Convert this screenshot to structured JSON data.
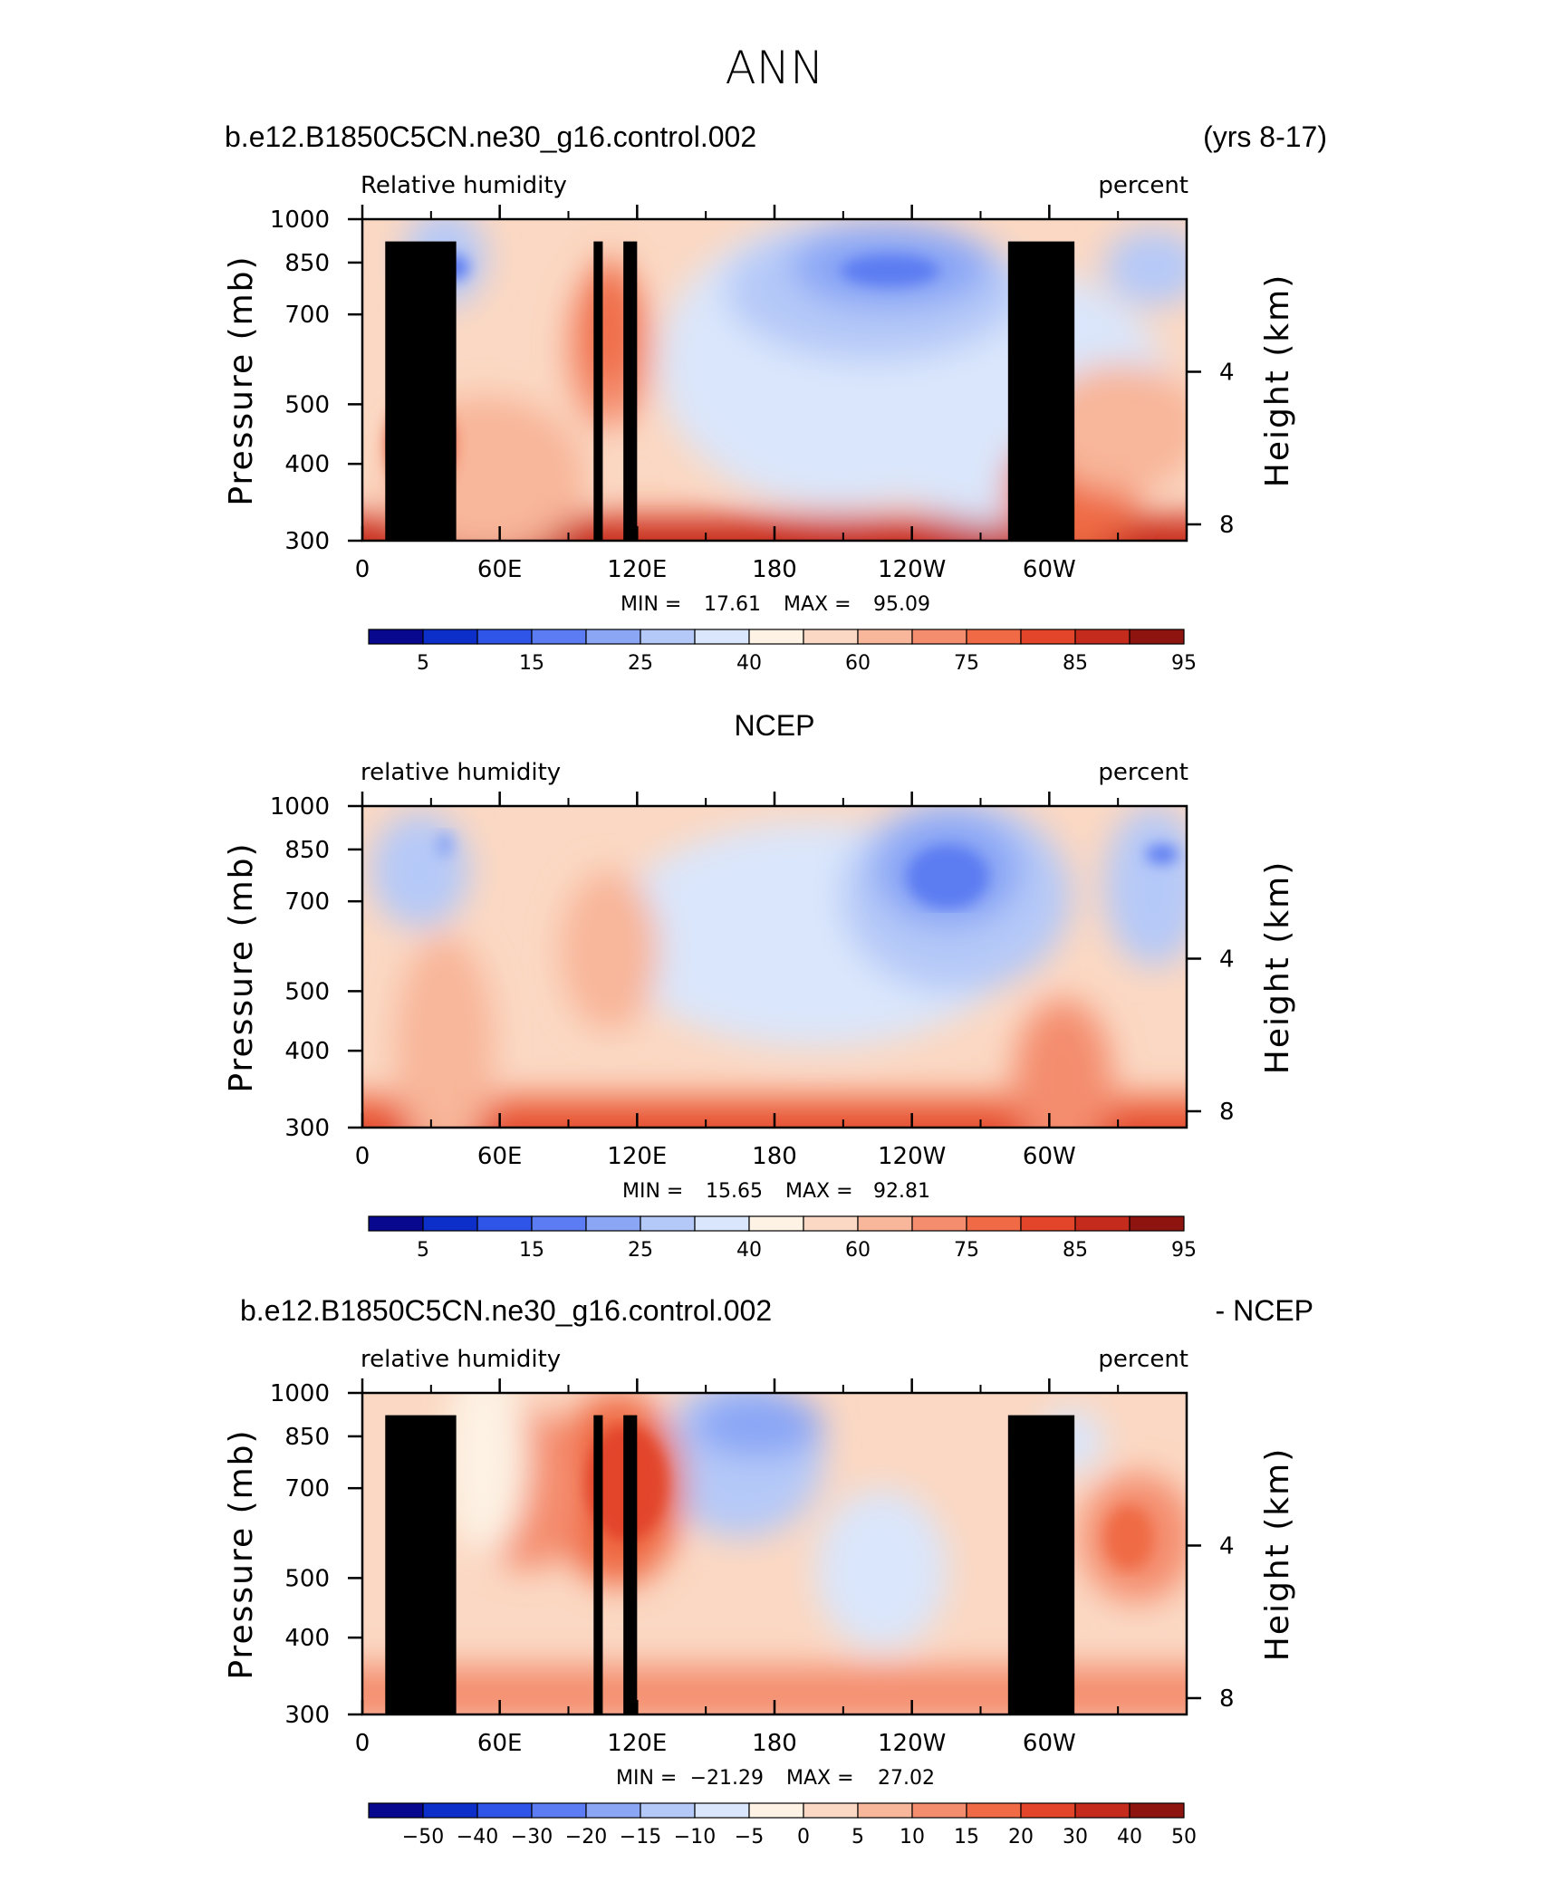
{
  "page": {
    "title": "ANN"
  },
  "palette": {
    "full": [
      "#08088f",
      "#0d2fc9",
      "#2f54e8",
      "#5b7cf2",
      "#8aa6f5",
      "#b5c9f8",
      "#dae6fb",
      "#fdf2e4",
      "#fbd8c3",
      "#f8b69a",
      "#f48d6e",
      "#ef6a45",
      "#e2452a",
      "#c52b1c",
      "#8e1410"
    ],
    "diff": [
      "#08088f",
      "#0d2fc9",
      "#2f54e8",
      "#5b7cf2",
      "#8aa6f5",
      "#b5c9f8",
      "#dae6fb",
      "#fdf2e4",
      "#fbd8c3",
      "#f8b69a",
      "#f48d6e",
      "#ef6a45",
      "#e2452a",
      "#c52b1c",
      "#8e1410"
    ]
  },
  "chart_data": [
    {
      "type": "heatmap",
      "header_left": "b.e12.B1850C5CN.ne30_g16.control.002",
      "header_right": "(yrs 8-17)",
      "variable_label": "Relative humidity",
      "units_label": "percent",
      "ylabel_left": "Pressure (mb)",
      "ylabel_right": "Height (km)",
      "x_ticks": [
        "0",
        "60E",
        "120E",
        "180",
        "120W",
        "60W"
      ],
      "y_ticks_left": [
        "300",
        "400",
        "500",
        "700",
        "850",
        "1000"
      ],
      "y_ticks_right": [
        "8",
        "4"
      ],
      "stats": {
        "min_label": "MIN =",
        "min": "17.61",
        "max_label": "MAX =",
        "max": "95.09"
      },
      "colorbar_labels": [
        "5",
        "15",
        "25",
        "40",
        "60",
        "75",
        "85",
        "95"
      ],
      "colorbar_scale": "full",
      "field": "model"
    },
    {
      "type": "heatmap",
      "header_center": "NCEP",
      "variable_label": "relative humidity",
      "units_label": "percent",
      "ylabel_left": "Pressure (mb)",
      "ylabel_right": "Height (km)",
      "x_ticks": [
        "0",
        "60E",
        "120E",
        "180",
        "120W",
        "60W"
      ],
      "y_ticks_left": [
        "300",
        "400",
        "500",
        "700",
        "850",
        "1000"
      ],
      "y_ticks_right": [
        "8",
        "4"
      ],
      "stats": {
        "min_label": "MIN =",
        "min": "15.65",
        "max_label": "MAX =",
        "max": "92.81"
      },
      "colorbar_labels": [
        "5",
        "15",
        "25",
        "40",
        "60",
        "75",
        "85",
        "95"
      ],
      "colorbar_scale": "full",
      "field": "obs"
    },
    {
      "type": "heatmap",
      "header_left": "b.e12.B1850C5CN.ne30_g16.control.002",
      "header_right": "- NCEP",
      "variable_label": "relative humidity",
      "units_label": "percent",
      "ylabel_left": "Pressure (mb)",
      "ylabel_right": "Height (km)",
      "x_ticks": [
        "0",
        "60E",
        "120E",
        "180",
        "120W",
        "60W"
      ],
      "y_ticks_left": [
        "300",
        "400",
        "500",
        "700",
        "850",
        "1000"
      ],
      "y_ticks_right": [
        "8",
        "4"
      ],
      "stats": {
        "min_label": "MIN =",
        "min": "−21.29",
        "max_label": "MAX =",
        "max": "27.02"
      },
      "colorbar_labels": [
        "−50",
        "−40",
        "−30",
        "−20",
        "−15",
        "−10",
        "−5",
        "0",
        "5",
        "10",
        "15",
        "20",
        "30",
        "40",
        "50"
      ],
      "colorbar_scale": "diff",
      "field": "diff"
    }
  ]
}
